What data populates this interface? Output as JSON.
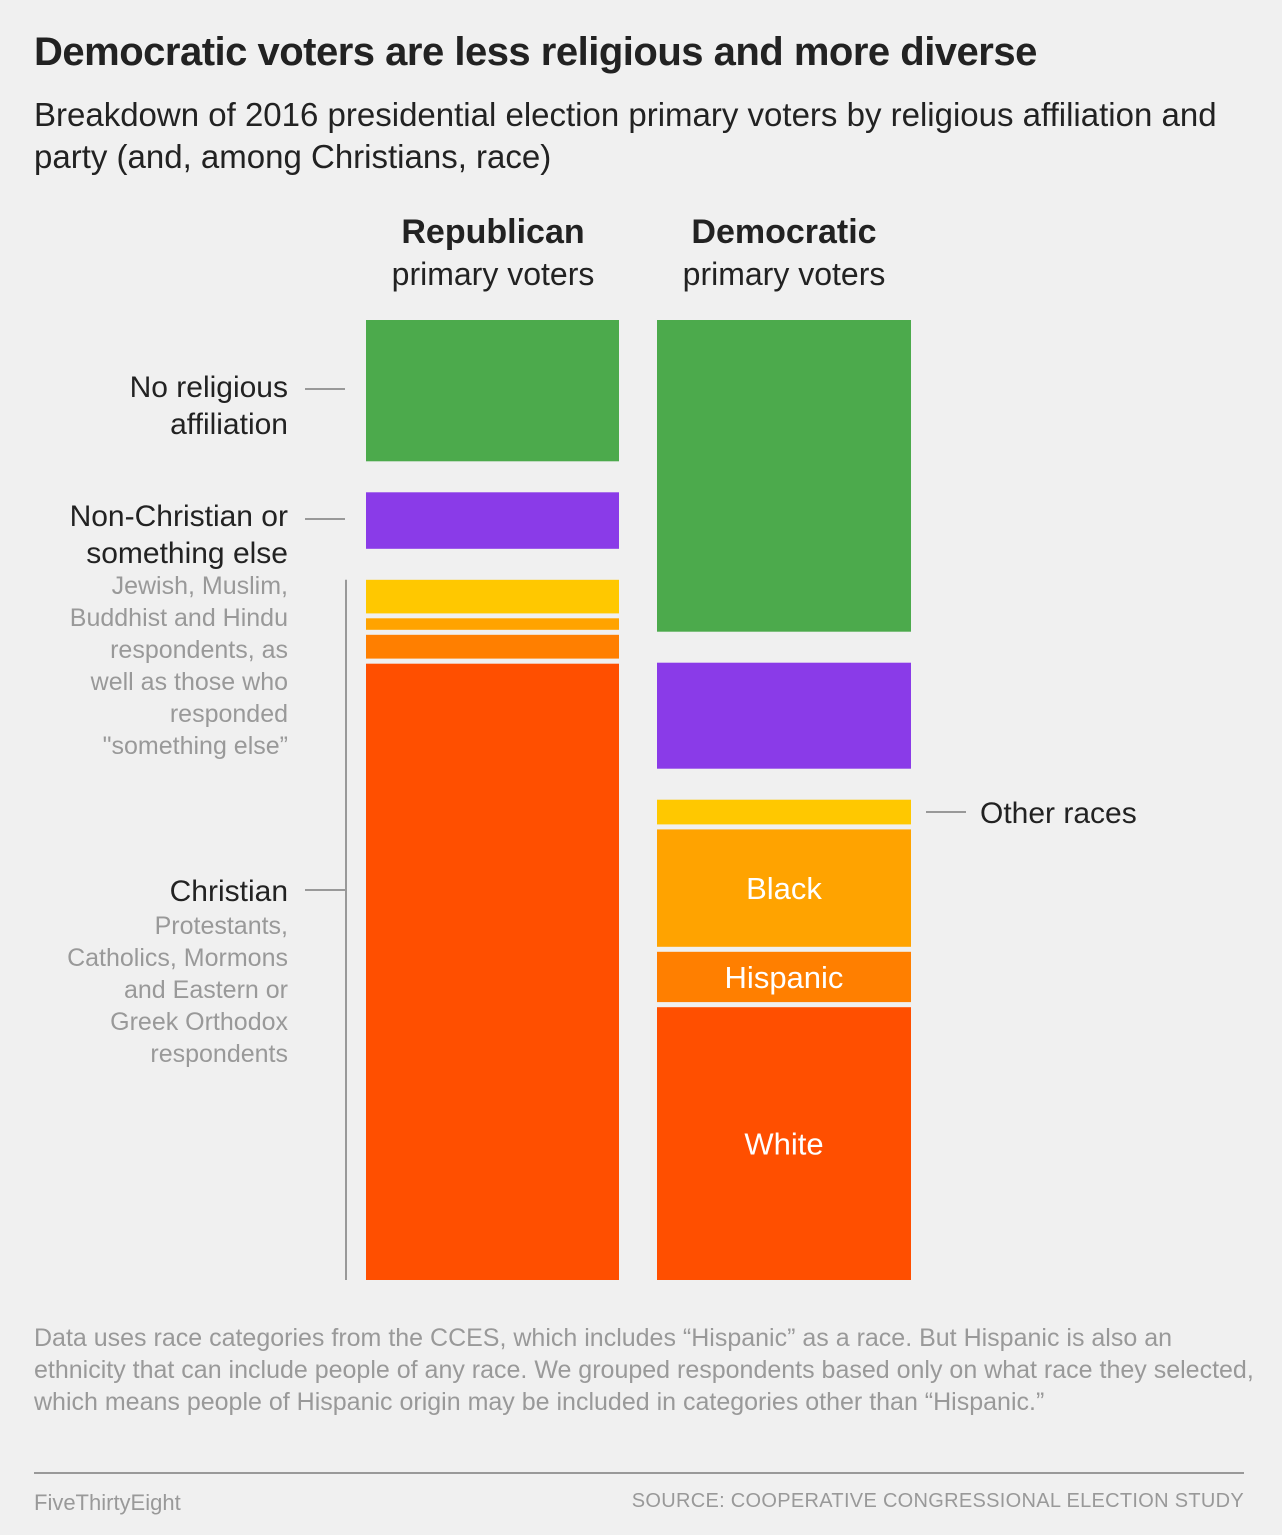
{
  "header": {
    "title": "Democratic voters are less religious and more diverse",
    "subtitle": "Breakdown of 2016 presidential election primary voters by religious affiliation and party (and, among Christians, race)"
  },
  "columns": [
    {
      "party": "Republican",
      "sub": "primary voters"
    },
    {
      "party": "Democratic",
      "sub": "primary voters"
    }
  ],
  "left_labels": {
    "no_religion": [
      "No religious",
      "affiliation"
    ],
    "non_christian": [
      "Non-Christian or",
      "something else"
    ],
    "non_christian_desc": [
      "Jewish, Muslim,",
      "Buddhist and Hindu",
      "respondents, as",
      "well as those who",
      "responded",
      "\"something else”"
    ],
    "christian": "Christian",
    "christian_desc": [
      "Protestants,",
      "Catholics, Mormons",
      "and Eastern or",
      "Greek Orthodox",
      "respondents"
    ]
  },
  "right_labels": {
    "other_races": "Other races"
  },
  "chart_data": {
    "type": "bar",
    "subtype": "stacked-100-percent",
    "title": "Democratic voters are less religious and more diverse",
    "subtitle": "Breakdown of 2016 presidential election primary voters by religious affiliation and party (and, among Christians, race)",
    "unit": "percent of primary voters (approximate, read from segment heights)",
    "categories": [
      "Republican primary voters",
      "Democratic primary voters"
    ],
    "groups": [
      {
        "name": "No religious affiliation",
        "segments": [
          "No religious affiliation"
        ]
      },
      {
        "name": "Non-Christian or something else",
        "segments": [
          "Non-Christian or something else"
        ]
      },
      {
        "name": "Christian",
        "segments": [
          "Christian - Other races",
          "Christian - Black",
          "Christian - Hispanic",
          "Christian - White"
        ]
      }
    ],
    "series": [
      {
        "name": "No religious affiliation",
        "group": 0,
        "color": "#4caa4c",
        "values": [
          16,
          35.3
        ],
        "inside_label": ""
      },
      {
        "name": "Non-Christian or something else",
        "group": 1,
        "color": "#8a3be8",
        "values": [
          6.4,
          12
        ],
        "inside_label": ""
      },
      {
        "name": "Other races",
        "group": 2,
        "color": "#ffc800",
        "values": [
          3.8,
          2.8
        ],
        "inside_label": ""
      },
      {
        "name": "Black",
        "group": 2,
        "color": "#ffa300",
        "values": [
          1.3,
          13.3
        ],
        "inside_label": "Black"
      },
      {
        "name": "Hispanic",
        "group": 2,
        "color": "#ff7f00",
        "values": [
          2.7,
          5.7
        ],
        "inside_label": "Hispanic"
      },
      {
        "name": "White",
        "group": 2,
        "color": "#ff4f00",
        "values": [
          69.8,
          30.9
        ],
        "inside_label": "White"
      }
    ],
    "ylim": [
      0,
      100
    ],
    "legend": "inline labels"
  },
  "footer": {
    "note": "Data uses race categories from the CCES, which includes “Hispanic” as a race. But Hispanic is also an ethnicity that can include people of any race. We grouped respondents based only on what race they selected, which means people of Hispanic origin may be included in categories other than “Hispanic.”",
    "brand": "FiveThirtyEight",
    "source": "SOURCE: COOPERATIVE CONGRESSIONAL ELECTION STUDY"
  }
}
